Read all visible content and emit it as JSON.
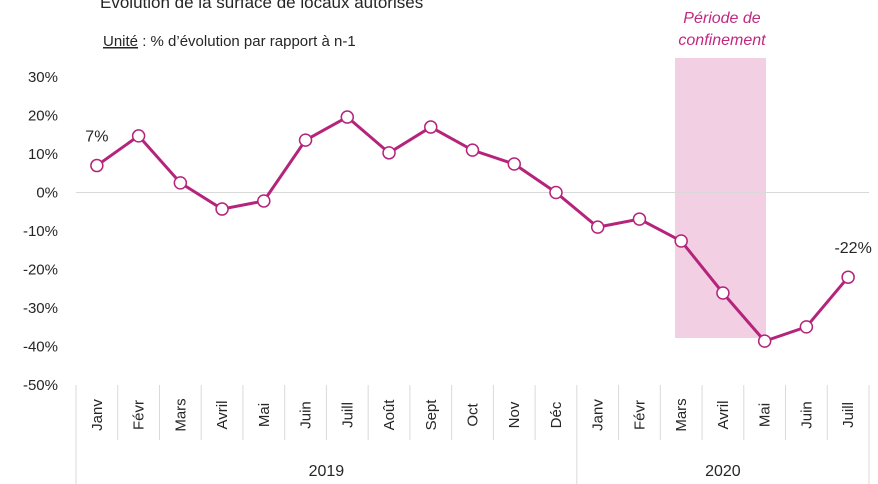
{
  "chart_data": {
    "type": "line",
    "title": "Évolution de la surface de locaux autorisés",
    "subtitle_label": "Unité",
    "subtitle": " : % d’évolution par rapport à n-1",
    "annotation": "Période de confinement",
    "categories": [
      "Janv",
      "Févr",
      "Mars",
      "Avril",
      "Mai",
      "Juin",
      "Juill",
      "Août",
      "Sept",
      "Oct",
      "Nov",
      "Déc",
      "Janv",
      "Févr",
      "Mars",
      "Avril",
      "Mai",
      "Juin",
      "Juill"
    ],
    "years": [
      "2019",
      "2020"
    ],
    "series": [
      {
        "color": "#b5247b",
        "values": [
          7,
          14.7,
          2.5,
          -4.3,
          -2.2,
          13.6,
          19.6,
          10.3,
          17.0,
          11.0,
          7.4,
          0,
          -9.0,
          -6.9,
          -12.6,
          -26.1,
          -38.6,
          -34.9,
          -22
        ],
        "value_labels": [
          "7%",
          null,
          null,
          null,
          null,
          null,
          null,
          null,
          null,
          null,
          null,
          null,
          null,
          null,
          null,
          null,
          null,
          null,
          "-22%"
        ]
      }
    ],
    "ylim": [
      -50,
      30
    ],
    "yticks": [
      {
        "value": 30,
        "label": "30%"
      },
      {
        "value": 20,
        "label": "20%"
      },
      {
        "value": 10,
        "label": "10%"
      },
      {
        "value": 0,
        "label": "0%"
      },
      {
        "value": -10,
        "label": "-10%"
      },
      {
        "value": -20,
        "label": "-20%"
      },
      {
        "value": -30,
        "label": "-30%"
      },
      {
        "value": -40,
        "label": "-40%"
      },
      {
        "value": -50,
        "label": "-50%"
      }
    ],
    "grid": false
  }
}
